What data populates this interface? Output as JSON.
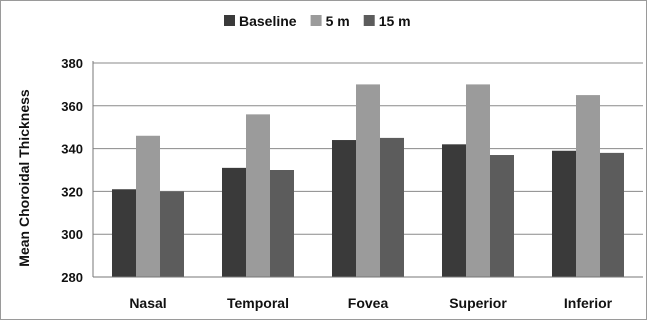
{
  "chart_data": {
    "type": "bar",
    "title": "",
    "xlabel": "",
    "ylabel": "Mean Choroidal Thickness",
    "categories": [
      "Nasal",
      "Temporal",
      "Fovea",
      "Superior",
      "Inferior"
    ],
    "series": [
      {
        "name": "Baseline",
        "color": "#3a3a3a",
        "values": [
          321,
          331,
          344,
          342,
          339
        ]
      },
      {
        "name": "5 m",
        "color": "#9b9b9b",
        "values": [
          346,
          356,
          370,
          370,
          365
        ]
      },
      {
        "name": "15 m",
        "color": "#5c5c5c",
        "values": [
          320,
          330,
          345,
          337,
          338
        ]
      }
    ],
    "ylim": [
      280,
      380
    ],
    "yticks": [
      280,
      300,
      320,
      340,
      360,
      380
    ],
    "grid": true,
    "legend_position": "top"
  }
}
